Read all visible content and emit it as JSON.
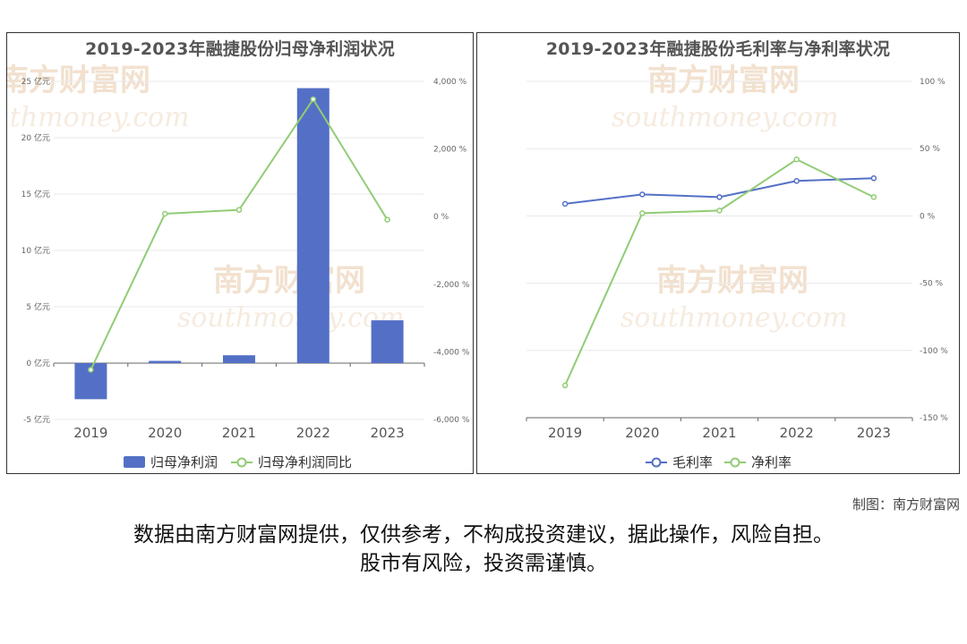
{
  "watermark": {
    "cn": "南方财富网",
    "en": "southmoney.com"
  },
  "credit": "制图：南方财富网",
  "disclaimer": {
    "line1": "数据由南方财富网提供，仅供参考，不构成投资建议，据此操作，风险自担。",
    "line2": "股市有风险，投资需谨慎。"
  },
  "colors": {
    "bar": "#5470c6",
    "green": "#91cc75",
    "blue": "#5470c6"
  },
  "chart_data": [
    {
      "type": "bar",
      "title": "2019-2023年融捷股份归母净利润状况",
      "categories": [
        "2019",
        "2020",
        "2021",
        "2022",
        "2023"
      ],
      "series": [
        {
          "name": "归母净利润",
          "type": "bar",
          "axis": "left",
          "values": [
            -3.2,
            0.2,
            0.7,
            24.4,
            3.8
          ]
        },
        {
          "name": "归母净利润同比",
          "type": "line",
          "axis": "right",
          "values": [
            -4530,
            85,
            200,
            3470,
            -90
          ]
        }
      ],
      "y_left": {
        "min": -5,
        "max": 25,
        "step": 5,
        "unit": "亿元"
      },
      "y_right": {
        "min": -6000,
        "max": 4000,
        "step": 2000,
        "unit": "%"
      },
      "legend": "bottom-center"
    },
    {
      "type": "line",
      "title": "2019-2023年融捷股份毛利率与净利率状况",
      "categories": [
        "2019",
        "2020",
        "2021",
        "2022",
        "2023"
      ],
      "series": [
        {
          "name": "毛利率",
          "values": [
            9,
            16,
            14,
            26,
            28
          ]
        },
        {
          "name": "净利率",
          "values": [
            -126,
            2,
            4,
            42,
            14
          ]
        }
      ],
      "y_right": {
        "min": -150,
        "max": 100,
        "step": 50,
        "unit": "%"
      },
      "legend": "bottom-center"
    }
  ]
}
